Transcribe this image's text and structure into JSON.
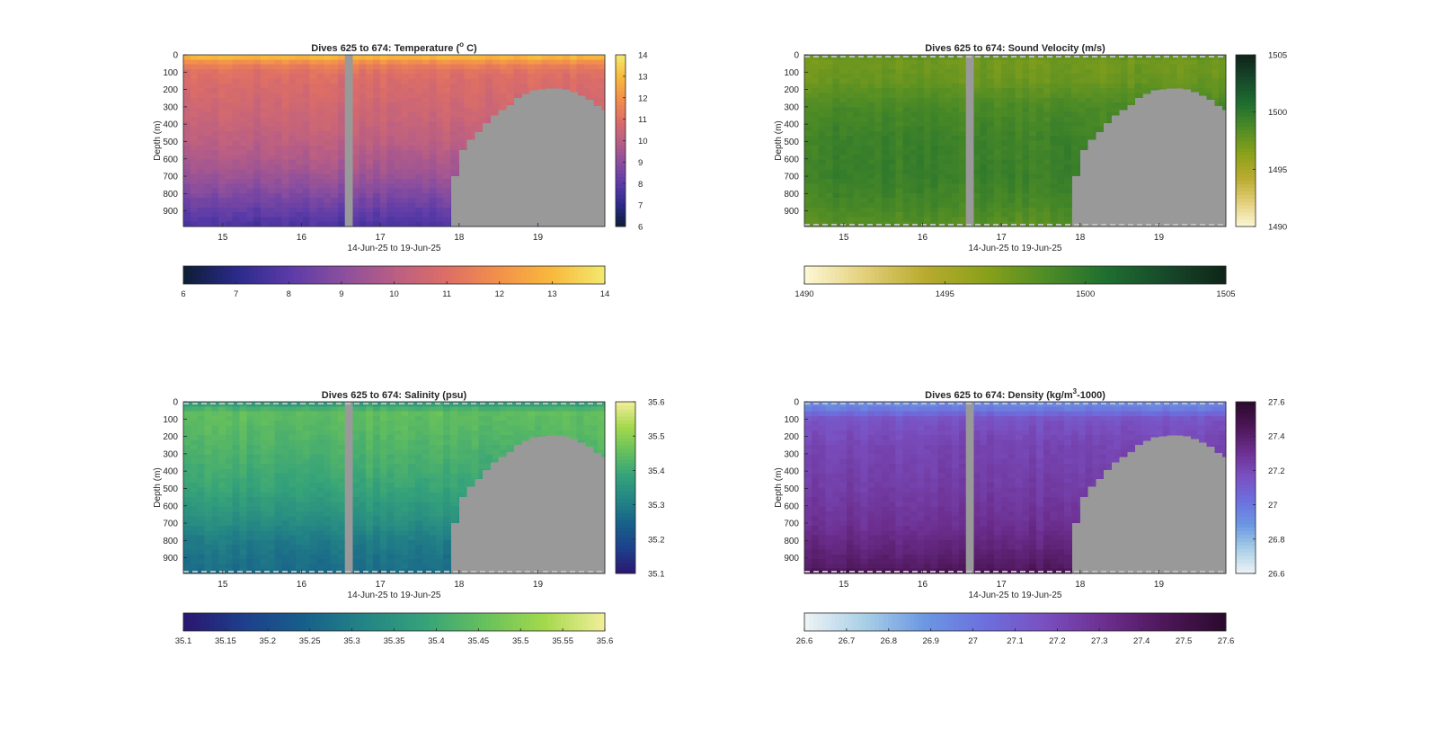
{
  "figure": {
    "x_date_range_label": "14-Jun-25 to 19-Jun-25",
    "y_axis_label": "Depth (m)",
    "x_tick_labels": [
      "15",
      "16",
      "17",
      "18",
      "19"
    ],
    "y_tick_labels": [
      "0",
      "100",
      "200",
      "300",
      "400",
      "500",
      "600",
      "700",
      "800",
      "900"
    ],
    "gap_fill_color": "#999999",
    "dashed_line_color": "#bfbfbf"
  },
  "chart_data": [
    {
      "type": "heatmap",
      "variable": "temperature",
      "title_prefix": "Dives 625 to 674: Temperature (",
      "title_sup": "o",
      "title_suffix": " C)",
      "xlabel": "14-Jun-25 to 19-Jun-25",
      "ylabel": "Depth (m)",
      "xlim": [
        14.5,
        19.85
      ],
      "ylim": [
        0,
        990
      ],
      "x_ticks": [
        15,
        16,
        17,
        18,
        19
      ],
      "y_ticks": [
        0,
        100,
        200,
        300,
        400,
        500,
        600,
        700,
        800,
        900
      ],
      "clim": [
        6,
        14
      ],
      "colorbar_ticks": [
        "6",
        "7",
        "8",
        "9",
        "10",
        "11",
        "12",
        "13",
        "14"
      ],
      "hcolorbar_ticks": [
        "6",
        "7",
        "8",
        "9",
        "10",
        "11",
        "12",
        "13",
        "14"
      ],
      "colormap": [
        "#0d1d33",
        "#2a2a8a",
        "#5a3aa8",
        "#8a4e9e",
        "#b95e84",
        "#dd6e66",
        "#f3914a",
        "#f8b93c",
        "#f2e96e"
      ],
      "profile": [
        [
          0,
          13.4
        ],
        [
          30,
          12.2
        ],
        [
          80,
          11.2
        ],
        [
          150,
          10.9
        ],
        [
          300,
          10.6
        ],
        [
          500,
          10.1
        ],
        [
          650,
          9.6
        ],
        [
          800,
          8.8
        ],
        [
          900,
          8.2
        ],
        [
          990,
          7.7
        ]
      ],
      "dashed_top": false,
      "dashed_bottom": false
    },
    {
      "type": "heatmap",
      "variable": "sound_velocity",
      "title_prefix": "Dives 625 to 674: Sound Velocity (m/s)",
      "title_sup": "",
      "title_suffix": "",
      "xlabel": "14-Jun-25 to 19-Jun-25",
      "ylabel": "Depth (m)",
      "xlim": [
        14.5,
        19.85
      ],
      "ylim": [
        0,
        990
      ],
      "x_ticks": [
        15,
        16,
        17,
        18,
        19
      ],
      "y_ticks": [
        0,
        100,
        200,
        300,
        400,
        500,
        600,
        700,
        800,
        900
      ],
      "clim": [
        1490,
        1505
      ],
      "colorbar_ticks": [
        "1490",
        "1495",
        "1500",
        "1505"
      ],
      "hcolorbar_ticks": [
        "1490",
        "1495",
        "1500",
        "1505"
      ],
      "colormap": [
        "#fcf8d6",
        "#e3cf7a",
        "#b9ab2f",
        "#8aa11a",
        "#4f8c25",
        "#1f6f30",
        "#17492a",
        "#0f2418"
      ],
      "profile": [
        [
          0,
          1498.0
        ],
        [
          40,
          1497.3
        ],
        [
          150,
          1497.6
        ],
        [
          300,
          1498.8
        ],
        [
          500,
          1499.4
        ],
        [
          700,
          1499.5
        ],
        [
          850,
          1499.0
        ],
        [
          990,
          1498.2
        ]
      ],
      "dashed_top": true,
      "dashed_bottom": true
    },
    {
      "type": "heatmap",
      "variable": "salinity",
      "title_prefix": "Dives 625 to 674: Salinity (psu)",
      "title_sup": "",
      "title_suffix": "",
      "xlabel": "14-Jun-25 to 19-Jun-25",
      "ylabel": "Depth (m)",
      "xlim": [
        14.5,
        19.85
      ],
      "ylim": [
        0,
        990
      ],
      "x_ticks": [
        15,
        16,
        17,
        18,
        19
      ],
      "y_ticks": [
        0,
        100,
        200,
        300,
        400,
        500,
        600,
        700,
        800,
        900
      ],
      "clim": [
        35.1,
        35.6
      ],
      "colorbar_ticks": [
        "35.1",
        "35.2",
        "35.3",
        "35.4",
        "35.5",
        "35.6"
      ],
      "hcolorbar_ticks": [
        "35.1",
        "35.15",
        "35.2",
        "35.25",
        "35.3",
        "35.35",
        "35.4",
        "35.45",
        "35.5",
        "35.55",
        "35.6"
      ],
      "colormap": [
        "#2b1670",
        "#1d3f8c",
        "#175f8a",
        "#238485",
        "#35a27a",
        "#66c05c",
        "#a4d94c",
        "#f3ee9a"
      ],
      "profile": [
        [
          0,
          35.36
        ],
        [
          60,
          35.45
        ],
        [
          150,
          35.44
        ],
        [
          300,
          35.42
        ],
        [
          500,
          35.39
        ],
        [
          650,
          35.35
        ],
        [
          800,
          35.3
        ],
        [
          900,
          35.28
        ],
        [
          990,
          35.27
        ]
      ],
      "dashed_top": true,
      "dashed_bottom": true
    },
    {
      "type": "heatmap",
      "variable": "density",
      "title_prefix": "Dives 625 to 674: Density (kg/m",
      "title_sup": "3",
      "title_suffix": "-1000)",
      "xlabel": "14-Jun-25 to 19-Jun-25",
      "ylabel": "Depth (m)",
      "xlim": [
        14.5,
        19.85
      ],
      "ylim": [
        0,
        990
      ],
      "x_ticks": [
        15,
        16,
        17,
        18,
        19
      ],
      "y_ticks": [
        0,
        100,
        200,
        300,
        400,
        500,
        600,
        700,
        800,
        900
      ],
      "clim": [
        26.6,
        27.6
      ],
      "colorbar_ticks": [
        "26.6",
        "26.8",
        "27",
        "27.2",
        "27.4",
        "27.6"
      ],
      "hcolorbar_ticks": [
        "26.6",
        "26.7",
        "26.8",
        "26.9",
        "27",
        "27.1",
        "27.2",
        "27.3",
        "27.4",
        "27.5",
        "27.6"
      ],
      "colormap": [
        "#eef4f6",
        "#a9cfe6",
        "#6b97e3",
        "#6d6fde",
        "#7a4fc0",
        "#6c2e8f",
        "#4d1658",
        "#2a0a2c"
      ],
      "profile": [
        [
          0,
          26.92
        ],
        [
          40,
          26.98
        ],
        [
          100,
          27.15
        ],
        [
          250,
          27.21
        ],
        [
          500,
          27.25
        ],
        [
          700,
          27.3
        ],
        [
          850,
          27.37
        ],
        [
          950,
          27.43
        ],
        [
          990,
          27.48
        ]
      ],
      "dashed_top": true,
      "dashed_bottom": true
    }
  ],
  "bathymetry_m": [
    {
      "x0": 17.9,
      "depth": 700
    },
    {
      "x0": 18.0,
      "depth": 550
    },
    {
      "x0": 18.1,
      "depth": 490
    },
    {
      "x0": 18.2,
      "depth": 445
    },
    {
      "x0": 18.3,
      "depth": 395
    },
    {
      "x0": 18.4,
      "depth": 350
    },
    {
      "x0": 18.5,
      "depth": 320
    },
    {
      "x0": 18.6,
      "depth": 290
    },
    {
      "x0": 18.7,
      "depth": 250
    },
    {
      "x0": 18.8,
      "depth": 225
    },
    {
      "x0": 18.9,
      "depth": 205
    },
    {
      "x0": 19.0,
      "depth": 200
    },
    {
      "x0": 19.1,
      "depth": 195
    },
    {
      "x0": 19.2,
      "depth": 195
    },
    {
      "x0": 19.3,
      "depth": 200
    },
    {
      "x0": 19.4,
      "depth": 215
    },
    {
      "x0": 19.5,
      "depth": 235
    },
    {
      "x0": 19.6,
      "depth": 260
    },
    {
      "x0": 19.7,
      "depth": 295
    },
    {
      "x0": 19.8,
      "depth": 320
    }
  ],
  "data_gap_days": [
    16.55,
    16.65
  ]
}
